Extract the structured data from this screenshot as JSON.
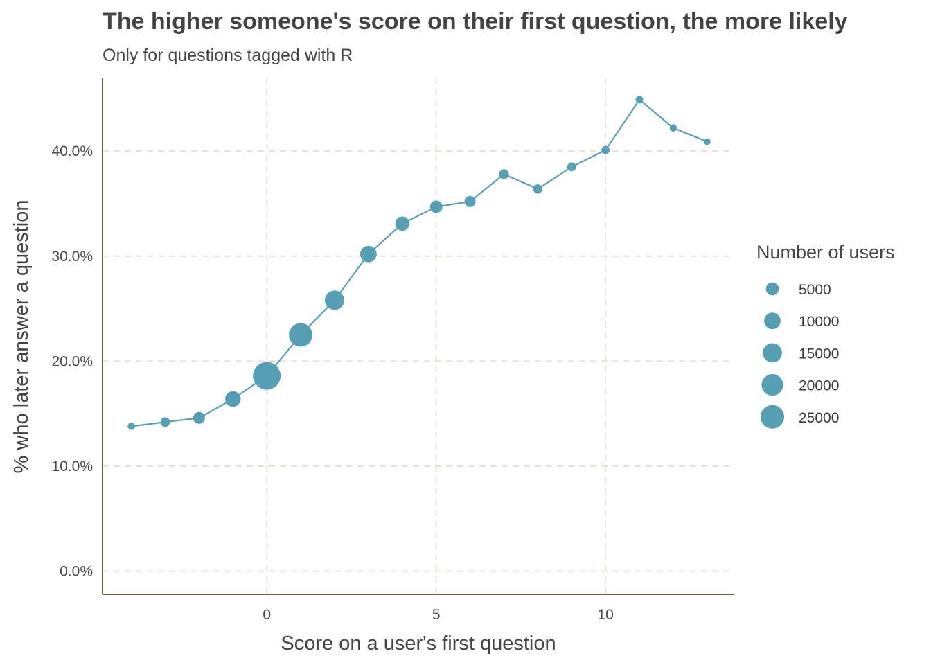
{
  "chart_data": {
    "type": "scatter",
    "title": "The higher someone's score on their first question, the more likely",
    "subtitle": "Only for questions tagged with R",
    "xlabel": "Score on a user's first question",
    "ylabel": "% who later answer a question",
    "x_ticks": [
      0,
      5,
      10
    ],
    "y_ticks": [
      0,
      10,
      20,
      30,
      40
    ],
    "y_tick_labels": [
      "0.0%",
      "10.0%",
      "20.0%",
      "30.0%",
      "40.0%"
    ],
    "xlim": [
      -4.85,
      13.8
    ],
    "ylim": [
      -2.2,
      47.0
    ],
    "grid": true,
    "legend_position": "right",
    "colors": {
      "series": "#579fb5",
      "axis": "#6b5a45",
      "grid": "#ecdfd2"
    },
    "legend": {
      "title": "Number of users",
      "entries": [
        {
          "label": "5000",
          "size": 5000
        },
        {
          "label": "10000",
          "size": 10000
        },
        {
          "label": "15000",
          "size": 15000
        },
        {
          "label": "20000",
          "size": 20000
        },
        {
          "label": "25000",
          "size": 25000
        }
      ]
    },
    "points": [
      {
        "x": -4,
        "y": 13.8,
        "n": 300
      },
      {
        "x": -3,
        "y": 14.2,
        "n": 1200
      },
      {
        "x": -2,
        "y": 14.6,
        "n": 2500
      },
      {
        "x": -1,
        "y": 16.4,
        "n": 6000
      },
      {
        "x": 0,
        "y": 18.6,
        "n": 27000
      },
      {
        "x": 1,
        "y": 22.5,
        "n": 18000
      },
      {
        "x": 2,
        "y": 25.8,
        "n": 11000
      },
      {
        "x": 3,
        "y": 30.2,
        "n": 7000
      },
      {
        "x": 4,
        "y": 33.1,
        "n": 4500
      },
      {
        "x": 5,
        "y": 34.7,
        "n": 3000
      },
      {
        "x": 6,
        "y": 35.2,
        "n": 2000
      },
      {
        "x": 7,
        "y": 37.8,
        "n": 1300
      },
      {
        "x": 8,
        "y": 36.4,
        "n": 1000
      },
      {
        "x": 9,
        "y": 38.5,
        "n": 800
      },
      {
        "x": 10,
        "y": 40.1,
        "n": 600
      },
      {
        "x": 11,
        "y": 44.9,
        "n": 400
      },
      {
        "x": 12,
        "y": 42.2,
        "n": 300
      },
      {
        "x": 13,
        "y": 40.9,
        "n": 200
      }
    ]
  }
}
